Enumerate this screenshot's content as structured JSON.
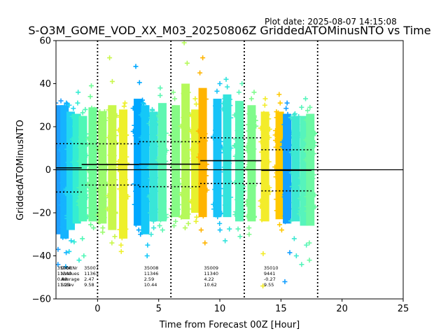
{
  "chart_data": {
    "type": "scatter",
    "plot_date": "Plot date: 2025-08-07 14:15:08",
    "title": "S-O3M_GOME_VOD_XX_M03_20250806Z GriddedATOMinusNTO vs Time",
    "xlabel": "Time from Forecast 00Z [Hour]",
    "ylabel": "GriddedATOMinusNTO",
    "xlim": [
      -3.4,
      25
    ],
    "ylim": [
      -60,
      60
    ],
    "xticks": [
      "0",
      "5",
      "10",
      "15",
      "20",
      "25"
    ],
    "yticks": [
      "−60",
      "−40",
      "−20",
      "0",
      "20",
      "40",
      "60"
    ],
    "vlines": [
      0,
      6,
      12,
      18
    ],
    "zero_line": 0,
    "marker": "+",
    "strips": [
      {
        "x": -3.2,
        "lo": -30,
        "hi": 30,
        "omin": -44,
        "omax": 32,
        "color": "#1f9fff"
      },
      {
        "x": -2.7,
        "lo": -32,
        "hi": 30,
        "omin": -45,
        "omax": 31,
        "color": "#15b3ff"
      },
      {
        "x": -2.2,
        "lo": -28,
        "hi": 27,
        "omin": -38,
        "omax": 30,
        "color": "#22d6f0"
      },
      {
        "x": -1.7,
        "lo": -25,
        "hi": 26,
        "omin": -42,
        "omax": 36,
        "color": "#34edd2"
      },
      {
        "x": -1.2,
        "lo": -24,
        "hi": 25,
        "omin": -40,
        "omax": 28,
        "color": "#4ff7b6"
      },
      {
        "x": -0.4,
        "lo": -24,
        "hi": 29,
        "omin": -27,
        "omax": 39,
        "color": "#6ffb95"
      },
      {
        "x": 0.4,
        "lo": -25,
        "hi": 27,
        "omin": -29,
        "omax": 27,
        "color": "#9bfb6f"
      },
      {
        "x": 1.2,
        "lo": -28,
        "hi": 30,
        "omin": -34,
        "omax": 52,
        "color": "#c9f74b"
      },
      {
        "x": 2.1,
        "lo": -32,
        "hi": 28,
        "omin": -38,
        "omax": 31,
        "color": "#eef02b"
      },
      {
        "x": 3.3,
        "lo": -26,
        "hi": 33,
        "omin": -30,
        "omax": 48,
        "color": "#00a8ff"
      },
      {
        "x": 3.9,
        "lo": -30,
        "hi": 30,
        "omin": -40,
        "omax": 31,
        "color": "#14c8f8"
      },
      {
        "x": 4.6,
        "lo": -24,
        "hi": 27,
        "omin": -30,
        "omax": 28,
        "color": "#39e6d8"
      },
      {
        "x": 5.3,
        "lo": -24,
        "hi": 31,
        "omin": -28,
        "omax": 38,
        "color": "#5ef7b2"
      },
      {
        "x": 6.4,
        "lo": -22,
        "hi": 30,
        "omin": -26,
        "omax": 36,
        "color": "#86fb86"
      },
      {
        "x": 7.2,
        "lo": -23,
        "hi": 40,
        "omin": -27,
        "omax": 59,
        "color": "#b5f95a"
      },
      {
        "x": 8.0,
        "lo": -20,
        "hi": 28,
        "omin": -24,
        "omax": 33,
        "color": "#e7f22e"
      },
      {
        "x": 8.6,
        "lo": -22,
        "hi": 38,
        "omin": -34,
        "omax": 52,
        "color": "#ffb400"
      },
      {
        "x": 9.8,
        "lo": -22,
        "hi": 33,
        "omin": -28,
        "omax": 40,
        "color": "#17c3f8"
      },
      {
        "x": 10.6,
        "lo": -22,
        "hi": 35,
        "omin": -33,
        "omax": 42,
        "color": "#33e3dc"
      },
      {
        "x": 11.6,
        "lo": -24,
        "hi": 32,
        "omin": -31,
        "omax": 40,
        "color": "#5af6b6"
      },
      {
        "x": 12.6,
        "lo": -24,
        "hi": 30,
        "omin": -30,
        "omax": 36,
        "color": "#7ffb8c"
      },
      {
        "x": 13.7,
        "lo": -24,
        "hi": 27,
        "omin": -54,
        "omax": 33,
        "color": "#f3ec2a"
      },
      {
        "x": 14.9,
        "lo": -23,
        "hi": 27,
        "omin": -28,
        "omax": 35,
        "color": "#ffc800"
      },
      {
        "x": 15.5,
        "lo": -25,
        "hi": 26,
        "omin": -52,
        "omax": 31,
        "color": "#149fff"
      },
      {
        "x": 16.2,
        "lo": -24,
        "hi": 25,
        "omin": -40,
        "omax": 26,
        "color": "#3de8d2"
      },
      {
        "x": 16.9,
        "lo": -26,
        "hi": 25,
        "omin": -44,
        "omax": 33,
        "color": "#56f4bc"
      },
      {
        "x": 17.4,
        "lo": -26,
        "hi": 26,
        "omin": -42,
        "omax": 29,
        "color": "#6cf9a4"
      }
    ],
    "mean_lines": [
      {
        "x0": -3.4,
        "x1": -1.3,
        "mean": 0.88,
        "stdev": 11.23
      },
      {
        "x0": -1.3,
        "x1": 3.4,
        "mean": 2.47,
        "stdev": 9.58
      },
      {
        "x0": 3.4,
        "x1": 8.4,
        "mean": 2.59,
        "stdev": 10.44
      },
      {
        "x0": 8.4,
        "x1": 13.4,
        "mean": 4.22,
        "stdev": 10.62
      },
      {
        "x0": 13.4,
        "x1": 17.5,
        "mean": -0.27,
        "stdev": 9.55
      }
    ],
    "stat_blocks": [
      {
        "x": -3.3,
        "lines": [
          "35006",
          "11340",
          "0.88",
          "11.23"
        ]
      },
      {
        "x": -1.1,
        "lines": [
          "35007",
          "11363",
          "2.47",
          "9.58"
        ]
      },
      {
        "x": 3.8,
        "lines": [
          "35008",
          "11346",
          "2.59",
          "10.44"
        ]
      },
      {
        "x": 8.7,
        "lines": [
          "35009",
          "11340",
          "4.22",
          "10.62"
        ]
      },
      {
        "x": 13.6,
        "lines": [
          "35010",
          "9441",
          "-0.27",
          "9.55"
        ]
      }
    ],
    "stat_row_labels": [
      "OrbitNr",
      "NValues",
      "Average",
      "Stdev"
    ],
    "stat_row_labels_x": -3.0
  }
}
